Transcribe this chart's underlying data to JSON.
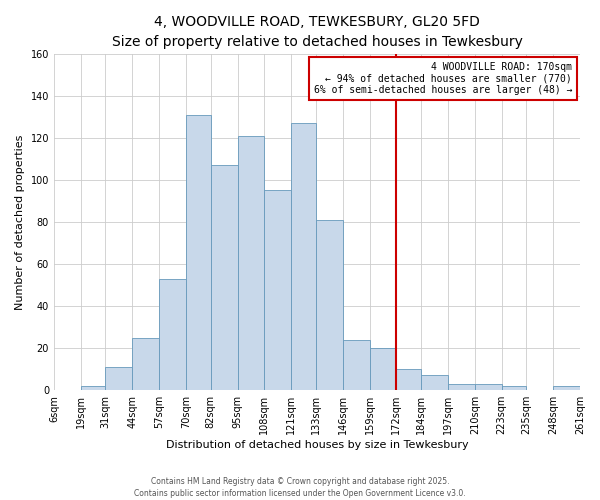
{
  "title": "4, WOODVILLE ROAD, TEWKESBURY, GL20 5FD",
  "subtitle": "Size of property relative to detached houses in Tewkesbury",
  "xlabel": "Distribution of detached houses by size in Tewkesbury",
  "ylabel": "Number of detached properties",
  "bar_labels": [
    "6sqm",
    "19sqm",
    "31sqm",
    "44sqm",
    "57sqm",
    "70sqm",
    "82sqm",
    "95sqm",
    "108sqm",
    "121sqm",
    "133sqm",
    "146sqm",
    "159sqm",
    "172sqm",
    "184sqm",
    "197sqm",
    "210sqm",
    "223sqm",
    "235sqm",
    "248sqm",
    "261sqm"
  ],
  "bar_values": [
    0,
    2,
    11,
    25,
    53,
    131,
    107,
    121,
    95,
    127,
    81,
    24,
    20,
    10,
    7,
    3,
    3,
    2,
    0,
    2
  ],
  "bin_edges": [
    6,
    19,
    31,
    44,
    57,
    70,
    82,
    95,
    108,
    121,
    133,
    146,
    159,
    172,
    184,
    197,
    210,
    223,
    235,
    248,
    261
  ],
  "bar_color": "#c8d8ea",
  "bar_edge_color": "#6699bb",
  "vline_x": 172,
  "vline_color": "#cc0000",
  "annotation_title": "4 WOODVILLE ROAD: 170sqm",
  "annotation_line1": "← 94% of detached houses are smaller (770)",
  "annotation_line2": "6% of semi-detached houses are larger (48) →",
  "annotation_box_color": "#ffffff",
  "annotation_box_edge": "#cc0000",
  "ylim": [
    0,
    160
  ],
  "yticks": [
    0,
    20,
    40,
    60,
    80,
    100,
    120,
    140,
    160
  ],
  "bg_color": "#ffffff",
  "plot_bg_color": "#ffffff",
  "grid_color": "#cccccc",
  "footer1": "Contains HM Land Registry data © Crown copyright and database right 2025.",
  "footer2": "Contains public sector information licensed under the Open Government Licence v3.0.",
  "title_fontsize": 10,
  "xlabel_fontsize": 8,
  "ylabel_fontsize": 8,
  "tick_fontsize": 7
}
